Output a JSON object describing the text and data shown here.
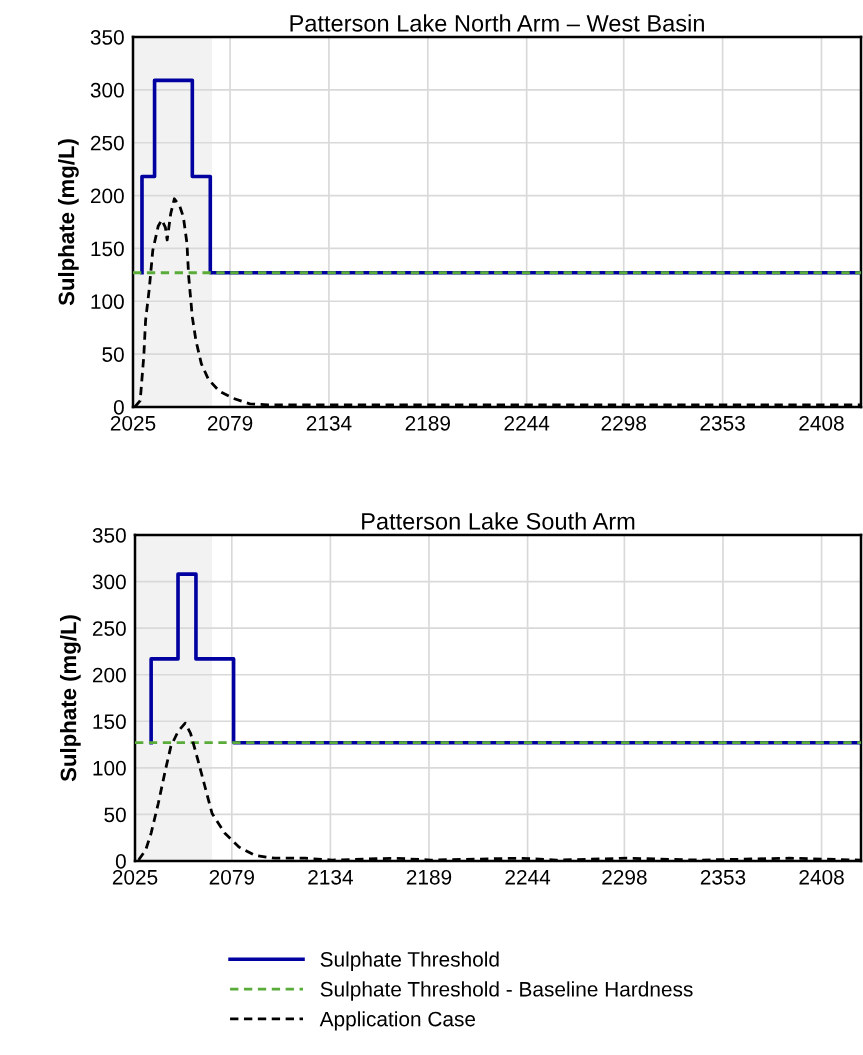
{
  "chart_data": [
    {
      "type": "line",
      "title": "Patterson Lake North Arm – West Basin",
      "ylabel": "Sulphate (mg/L)",
      "xlim": [
        2025,
        2430
      ],
      "xticks": [
        2025,
        2079,
        2134,
        2189,
        2244,
        2298,
        2353,
        2408
      ],
      "ylim": [
        0,
        350
      ],
      "yticks": [
        0,
        50,
        100,
        150,
        200,
        250,
        300,
        350
      ],
      "grid": true,
      "bands": [
        {
          "axis": "x",
          "from": 2025,
          "to": 2069,
          "color": "#f2f2f2"
        }
      ],
      "series": [
        {
          "type": "step",
          "color": "#0000a0",
          "line_style": "solid",
          "x": [
            2030,
            2030,
            2037,
            2058,
            2068,
            2430
          ],
          "values": [
            127,
            218,
            309,
            218,
            127,
            127
          ]
        },
        {
          "color": "#5aac3a",
          "line_style": "dashed",
          "x": [
            2025,
            2430
          ],
          "values": [
            127,
            127
          ]
        },
        {
          "color": "#000000",
          "line_style": "dashed",
          "x": [
            2026,
            2029,
            2031,
            2032,
            2034,
            2036,
            2039,
            2041,
            2043,
            2044,
            2046,
            2048,
            2051,
            2053,
            2055,
            2056,
            2058,
            2060,
            2063,
            2067,
            2073,
            2081,
            2090,
            2100,
            2430
          ],
          "values": [
            0,
            6,
            48,
            82,
            111,
            148,
            171,
            177,
            170,
            158,
            183,
            197,
            190,
            180,
            155,
            123,
            85,
            63,
            41,
            26,
            15,
            8,
            3,
            2,
            2
          ]
        }
      ]
    },
    {
      "type": "line",
      "title": "Patterson Lake South Arm",
      "ylabel": "Sulphate (mg/L)",
      "xlim": [
        2025,
        2430
      ],
      "xticks": [
        2025,
        2079,
        2134,
        2189,
        2244,
        2298,
        2353,
        2408
      ],
      "ylim": [
        0,
        350
      ],
      "yticks": [
        0,
        50,
        100,
        150,
        200,
        250,
        300,
        350
      ],
      "grid": true,
      "legend": "bottom",
      "bands": [
        {
          "axis": "x",
          "from": 2025,
          "to": 2068,
          "color": "#f2f2f2"
        }
      ],
      "series": [
        {
          "name": "Sulphate Threshold",
          "type": "step",
          "color": "#0000a0",
          "line_style": "solid",
          "x": [
            2034,
            2034,
            2049,
            2059,
            2080,
            2430
          ],
          "values": [
            127,
            217,
            308,
            217,
            127,
            127
          ]
        },
        {
          "name": "Sulphate Threshold - Baseline Hardness",
          "color": "#5aac3a",
          "line_style": "dashed",
          "x": [
            2025,
            2430
          ],
          "values": [
            127,
            127
          ]
        },
        {
          "name": "Application Case",
          "color": "#000000",
          "line_style": "dashed",
          "x": [
            2027,
            2031,
            2034,
            2038,
            2042,
            2045,
            2049,
            2053,
            2056,
            2060,
            2064,
            2068,
            2075,
            2083,
            2092,
            2103,
            2120,
            2135,
            2170,
            2190,
            2240,
            2260,
            2300,
            2340,
            2390,
            2430
          ],
          "values": [
            1,
            12,
            30,
            62,
            98,
            123,
            139,
            148,
            137,
            109,
            80,
            51,
            30,
            15,
            6,
            3,
            3,
            1,
            3,
            1,
            3,
            1,
            3,
            1,
            3,
            1
          ]
        }
      ]
    }
  ]
}
